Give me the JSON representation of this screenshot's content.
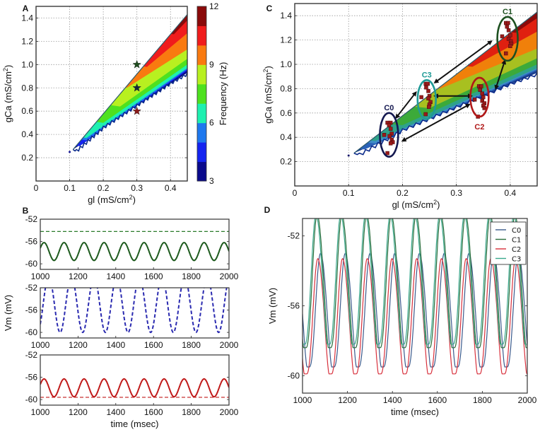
{
  "chart_data": [
    {
      "id": "A",
      "panel_label": "A",
      "type": "heatmap",
      "title": "",
      "xlabel": "gl (mS/cm²)",
      "xlabel_main": "gl (mS/cm",
      "xlabel_sup": "2",
      "xlabel_tail": ")",
      "ylabel": "gCa (mS/cm²)",
      "ylabel_main": "gCa (mS/cm",
      "ylabel_sup": "2",
      "ylabel_tail": ")",
      "xlim": [
        0,
        0.45
      ],
      "ylim": [
        0,
        1.5
      ],
      "xticks": [
        0,
        0.1,
        0.2,
        0.3,
        0.4
      ],
      "xtick_labels": [
        "0",
        "0.1",
        "0.2",
        "0.3",
        "0.4"
      ],
      "yticks": [
        0.2,
        0.4,
        0.6,
        0.8,
        1.0,
        1.2,
        1.4
      ],
      "ytick_labels": [
        "0.2",
        "0.4",
        "0.6",
        "0.8",
        "1.0",
        "1.2",
        "1.4"
      ],
      "grid": true,
      "region": {
        "description": "oscillatory region between upper and lower boundary, colored by frequency",
        "upper_boundary": [
          [
            0.11,
            0.27
          ],
          [
            0.45,
            1.43
          ]
        ],
        "lower_boundary": [
          [
            0.11,
            0.27
          ],
          [
            0.12,
            0.27
          ],
          [
            0.2,
            0.47
          ],
          [
            0.3,
            0.66
          ],
          [
            0.4,
            0.85
          ],
          [
            0.45,
            0.93
          ]
        ],
        "isofrequency_bands": [
          {
            "hz_range": [
              3,
              4
            ],
            "lower": [
              [
                0.11,
                0.27
              ],
              [
                0.45,
                0.93
              ]
            ],
            "upper": [
              [
                0.11,
                0.27
              ],
              [
                0.16,
                0.37
              ],
              [
                0.45,
                0.95
              ]
            ]
          },
          {
            "hz_range": [
              4,
              5
            ],
            "lower": [
              [
                0.13,
                0.3
              ],
              [
                0.45,
                0.95
              ]
            ],
            "upper": [
              [
                0.13,
                0.32
              ],
              [
                0.16,
                0.38
              ],
              [
                0.45,
                0.96
              ]
            ]
          },
          {
            "hz_range": [
              5,
              6
            ],
            "lower": [
              [
                0.15,
                0.35
              ],
              [
                0.45,
                0.96
              ]
            ],
            "upper": [
              [
                0.15,
                0.36
              ],
              [
                0.18,
                0.43
              ],
              [
                0.45,
                0.97
              ]
            ]
          },
          {
            "hz_range": [
              6,
              7
            ],
            "lower": [
              [
                0.15,
                0.37
              ],
              [
                0.45,
                0.97
              ]
            ],
            "upper": [
              [
                0.17,
                0.42
              ],
              [
                0.25,
                0.6
              ],
              [
                0.45,
                1.0
              ]
            ]
          },
          {
            "hz_range": [
              7,
              8
            ],
            "lower": [
              [
                0.2,
                0.5
              ],
              [
                0.45,
                1.0
              ]
            ],
            "upper": [
              [
                0.21,
                0.54
              ],
              [
                0.3,
                0.74
              ],
              [
                0.45,
                1.05
              ]
            ]
          },
          {
            "hz_range": [
              8,
              9
            ],
            "lower": [
              [
                0.25,
                0.64
              ],
              [
                0.45,
                1.05
              ]
            ],
            "upper": [
              [
                0.27,
                0.78
              ],
              [
                0.45,
                1.13
              ]
            ]
          },
          {
            "hz_range": [
              9,
              10
            ],
            "lower": [
              [
                0.27,
                0.8
              ],
              [
                0.45,
                1.13
              ]
            ],
            "upper": [
              [
                0.33,
                0.96
              ],
              [
                0.45,
                1.27
              ]
            ]
          },
          {
            "hz_range": [
              10,
              11
            ],
            "lower": [
              [
                0.33,
                0.98
              ],
              [
                0.45,
                1.27
              ]
            ],
            "upper": [
              [
                0.39,
                1.2
              ],
              [
                0.45,
                1.38
              ]
            ]
          },
          {
            "hz_range": [
              11,
              12
            ],
            "lower": [
              [
                0.41,
                1.26
              ],
              [
                0.45,
                1.38
              ]
            ],
            "upper": [
              [
                0.43,
                1.35
              ],
              [
                0.45,
                1.43
              ]
            ]
          }
        ]
      },
      "markers": [
        {
          "x": 0.1,
          "y": 0.25,
          "shape": "dot",
          "color": "#1a1a9a"
        },
        {
          "x": 0.3,
          "y": 1.0,
          "shape": "star",
          "color": "#1f4d1f"
        },
        {
          "x": 0.3,
          "y": 0.8,
          "shape": "star",
          "color": "#14283a"
        },
        {
          "x": 0.3,
          "y": 0.6,
          "shape": "star",
          "color": "#8b1a1a"
        }
      ],
      "colorbar": {
        "label": "Frequency (Hz)",
        "range": [
          3,
          12
        ],
        "ticks": [
          3,
          6,
          9,
          12
        ],
        "tick_labels": [
          "3",
          "6",
          "9",
          "12"
        ],
        "bands": [
          "#0a0a8c",
          "#1424f0",
          "#1e78ee",
          "#1ef0b0",
          "#4ee11f",
          "#b8f020",
          "#f97a10",
          "#f01c1c",
          "#8a0a0a"
        ]
      }
    },
    {
      "id": "C",
      "panel_label": "C",
      "type": "scatter",
      "title": "",
      "xlabel": "gl (mS/cm²)",
      "xlabel_main": "gl (mS/cm",
      "xlabel_sup": "2",
      "xlabel_tail": ")",
      "ylabel": "gCa (mS/cm²)",
      "ylabel_main": "gCa (mS/cm",
      "ylabel_sup": "2",
      "ylabel_tail": ")",
      "xlim": [
        0,
        0.45
      ],
      "ylim": [
        0,
        1.5
      ],
      "xticks": [
        0,
        0.1,
        0.2,
        0.3,
        0.4
      ],
      "xtick_labels": [
        "0",
        "0.1",
        "0.2",
        "0.3",
        "0.4"
      ],
      "yticks": [
        0.2,
        0.4,
        0.6,
        0.8,
        1.0,
        1.2,
        1.4
      ],
      "ytick_labels": [
        "0.2",
        "0.4",
        "0.6",
        "0.8",
        "1.0",
        "1.2",
        "1.4"
      ],
      "grid": true,
      "region_colors": [
        "#1c3f8e",
        "#2a62b8",
        "#3d8cc8",
        "#2ea28a",
        "#3caa3a",
        "#a8c020",
        "#f0800a",
        "#e02010",
        "#8c0a0a"
      ],
      "clusters": [
        {
          "name": "C0",
          "center": [
            0.175,
            0.42
          ],
          "rx": 0.017,
          "ry": 0.18,
          "color": "#141850",
          "points": [
            [
              0.172,
              0.52
            ],
            [
              0.178,
              0.52
            ],
            [
              0.175,
              0.5
            ],
            [
              0.178,
              0.47
            ],
            [
              0.18,
              0.43
            ],
            [
              0.166,
              0.42
            ],
            [
              0.176,
              0.41
            ],
            [
              0.18,
              0.38
            ],
            [
              0.182,
              0.36
            ],
            [
              0.178,
              0.35
            ],
            [
              0.172,
              0.27
            ]
          ]
        },
        {
          "name": "C1",
          "center": [
            0.395,
            1.21
          ],
          "rx": 0.019,
          "ry": 0.18,
          "color": "#1d5020",
          "points": [
            [
              0.392,
              1.34
            ],
            [
              0.396,
              1.34
            ],
            [
              0.394,
              1.31
            ],
            [
              0.397,
              1.28
            ],
            [
              0.385,
              1.23
            ],
            [
              0.4,
              1.24
            ],
            [
              0.397,
              1.21
            ],
            [
              0.401,
              1.19
            ],
            [
              0.402,
              1.17
            ],
            [
              0.4,
              1.15
            ],
            [
              0.392,
              1.09
            ]
          ]
        },
        {
          "name": "C2",
          "center": [
            0.343,
            0.73
          ],
          "rx": 0.017,
          "ry": 0.16,
          "color": "#b01818",
          "points": [
            [
              0.342,
              0.82
            ],
            [
              0.346,
              0.82
            ],
            [
              0.344,
              0.79
            ],
            [
              0.348,
              0.76
            ],
            [
              0.35,
              0.73
            ],
            [
              0.334,
              0.71
            ],
            [
              0.348,
              0.7
            ],
            [
              0.352,
              0.68
            ],
            [
              0.35,
              0.66
            ],
            [
              0.352,
              0.64
            ],
            [
              0.34,
              0.57
            ]
          ]
        },
        {
          "name": "C3",
          "center": [
            0.245,
            0.71
          ],
          "rx": 0.017,
          "ry": 0.16,
          "color": "#1f9a96",
          "points": [
            [
              0.243,
              0.84
            ],
            [
              0.247,
              0.84
            ],
            [
              0.244,
              0.81
            ],
            [
              0.248,
              0.78
            ],
            [
              0.235,
              0.73
            ],
            [
              0.25,
              0.74
            ],
            [
              0.248,
              0.72
            ],
            [
              0.252,
              0.69
            ],
            [
              0.25,
              0.67
            ],
            [
              0.249,
              0.65
            ],
            [
              0.243,
              0.59
            ]
          ]
        }
      ],
      "arrows": [
        {
          "from": [
            0.188,
            0.56
          ],
          "to": [
            0.225,
            0.77
          ]
        },
        {
          "from": [
            0.26,
            0.85
          ],
          "to": [
            0.365,
            1.19
          ]
        },
        {
          "from": [
            0.26,
            0.74
          ],
          "to": [
            0.328,
            0.74
          ]
        },
        {
          "from": [
            0.2,
            0.37
          ],
          "to": [
            0.324,
            0.67
          ]
        },
        {
          "from": [
            0.373,
            0.8
          ],
          "to": [
            0.39,
            1.03
          ]
        }
      ],
      "markers": [
        {
          "x": 0.1,
          "y": 0.25,
          "shape": "dot",
          "color": "#1a1a6a"
        }
      ]
    },
    {
      "id": "B1",
      "panel_label": "B",
      "type": "line",
      "xlabel": "",
      "ylabel": "",
      "xlim": [
        1000,
        2000
      ],
      "ylim": [
        -61,
        -52
      ],
      "xticks": [
        1000,
        1200,
        1400,
        1600,
        1800,
        2000
      ],
      "xtick_labels": [
        "1000",
        "1200",
        "1400",
        "1600",
        "1800",
        "2000"
      ],
      "yticks": [
        -52,
        -56,
        -60
      ],
      "ytick_labels": [
        "-52",
        "-56",
        "-60"
      ],
      "grid": false,
      "series": [
        {
          "name": "trace",
          "kind": "sine",
          "center": -57.8,
          "amplitude": 1.6,
          "period_ms": 106,
          "peak_at_ms": 1020,
          "color": "#1d5a1d",
          "style": "solid"
        },
        {
          "name": "threshold",
          "kind": "hline",
          "value": -54.2,
          "color": "#2a7a2a",
          "style": "dashed"
        }
      ]
    },
    {
      "id": "B2",
      "panel_label": "",
      "type": "line",
      "xlabel": "",
      "ylabel": "Vm (mV)",
      "xlim": [
        1000,
        2000
      ],
      "ylim": [
        -61,
        -52
      ],
      "xticks": [
        1000,
        1200,
        1400,
        1600,
        1800,
        2000
      ],
      "xtick_labels": [
        "1000",
        "1200",
        "1400",
        "1600",
        "1800",
        "2000"
      ],
      "yticks": [
        -52,
        -56,
        -60
      ],
      "ytick_labels": [
        "-52",
        "-56",
        "-60"
      ],
      "grid": false,
      "series": [
        {
          "name": "trace",
          "kind": "sine",
          "center": -55.0,
          "amplitude": 5.0,
          "period_ms": 120,
          "peak_at_ms": 1045,
          "color": "#2a2ab0",
          "style": "dashed"
        }
      ]
    },
    {
      "id": "B3",
      "panel_label": "",
      "type": "line",
      "xlabel": "time (msec)",
      "ylabel": "",
      "xlim": [
        1000,
        2000
      ],
      "ylim": [
        -61,
        -52
      ],
      "xticks": [
        1000,
        1200,
        1400,
        1600,
        1800,
        2000
      ],
      "xtick_labels": [
        "1000",
        "1200",
        "1400",
        "1600",
        "1800",
        "2000"
      ],
      "yticks": [
        -52,
        -56,
        -60
      ],
      "ytick_labels": [
        "-52",
        "-56",
        "-60"
      ],
      "grid": false,
      "series": [
        {
          "name": "trace",
          "kind": "sine",
          "center": -57.9,
          "amplitude": 1.6,
          "period_ms": 106,
          "peak_at_ms": 1020,
          "color": "#c01a1a",
          "style": "solid"
        },
        {
          "name": "threshold",
          "kind": "hline",
          "value": -59.6,
          "color": "#c01a1a",
          "style": "dashed"
        }
      ]
    },
    {
      "id": "D",
      "panel_label": "D",
      "type": "line",
      "xlabel": "time (msec)",
      "ylabel": "Vm (mV)",
      "xlim": [
        1000,
        2000
      ],
      "ylim": [
        -61,
        -51
      ],
      "xticks": [
        1000,
        1200,
        1400,
        1600,
        1800,
        2000
      ],
      "xtick_labels": [
        "1000",
        "1200",
        "1400",
        "1600",
        "1800",
        "2000"
      ],
      "yticks": [
        -52,
        -56,
        -60
      ],
      "ytick_labels": [
        "-52",
        "-56",
        "-60"
      ],
      "grid": false,
      "legend": {
        "position": "top-right",
        "entries": [
          "C0",
          "C1",
          "C2",
          "C3"
        ]
      },
      "series": [
        {
          "name": "C0",
          "kind": "spike",
          "min": -59.5,
          "max": -53.0,
          "period_ms": 110,
          "peak_at_ms": 1080,
          "color": "#3b5a8c",
          "style": "solid"
        },
        {
          "name": "C1",
          "kind": "spike",
          "min": -58.4,
          "max": -50.8,
          "period_ms": 110,
          "peak_at_ms": 1065,
          "color": "#2a6e3c",
          "style": "solid"
        },
        {
          "name": "C2",
          "kind": "spike",
          "min": -59.9,
          "max": -53.3,
          "period_ms": 110,
          "peak_at_ms": 1068,
          "color": "#d8303c",
          "style": "solid"
        },
        {
          "name": "C3",
          "kind": "spike",
          "min": -58.2,
          "max": -50.8,
          "period_ms": 110,
          "peak_at_ms": 1060,
          "color": "#3aa88c",
          "style": "solid"
        }
      ]
    }
  ]
}
